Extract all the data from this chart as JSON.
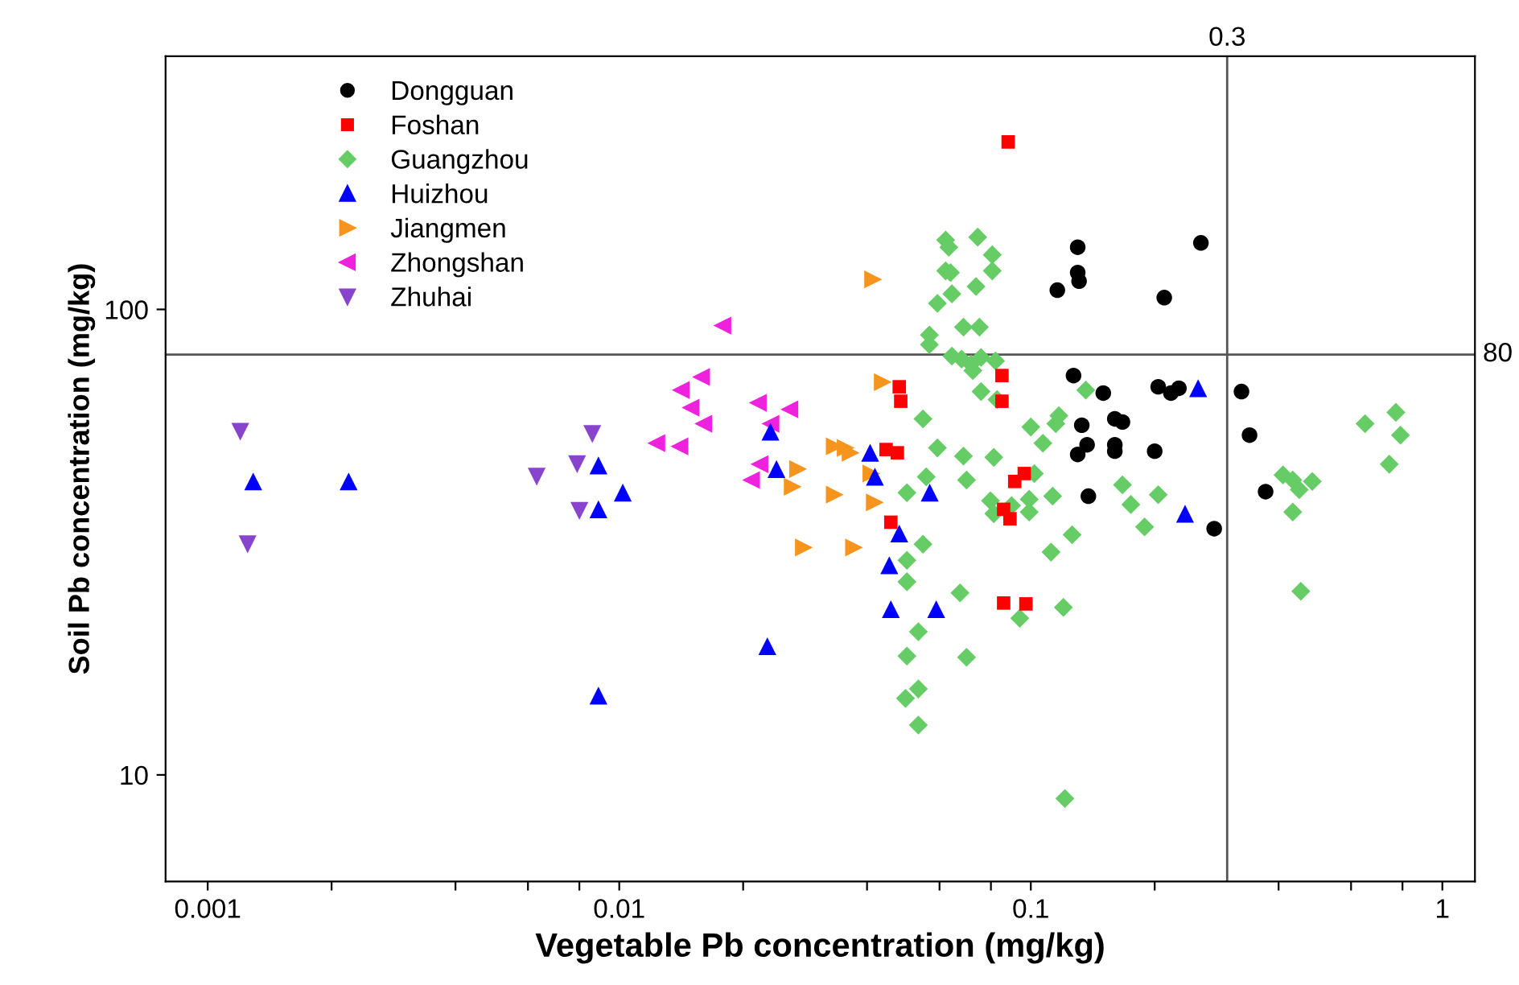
{
  "chart_data": {
    "type": "scatter",
    "xlabel": "Vegetable Pb concentration (mg/kg)",
    "ylabel": "Soil Pb concentration (mg/kg)",
    "log": "xy",
    "xlim": [
      0.00079,
      1.2
    ],
    "ylim": [
      5.9,
      350
    ],
    "xticks": [
      0.001,
      {
        "value": 0.002,
        "label": null
      },
      {
        "value": 0.004,
        "label": null
      },
      {
        "value": 0.006,
        "label": null
      },
      {
        "value": 0.008,
        "label": null
      },
      0.01,
      {
        "value": 0.02,
        "label": null
      },
      {
        "value": 0.04,
        "label": null
      },
      {
        "value": 0.06,
        "label": null
      },
      {
        "value": 0.08,
        "label": null
      },
      0.1,
      {
        "value": 0.2,
        "label": null
      },
      {
        "value": 0.4,
        "label": null
      },
      {
        "value": 0.6,
        "label": null
      },
      {
        "value": 0.8,
        "label": null
      },
      1
    ],
    "yticks": [
      10,
      100
    ],
    "grid": false,
    "legend": "top left",
    "ref_lines": [
      {
        "axis": "x",
        "value": 0.3,
        "label": "0.3",
        "color": "#555555"
      },
      {
        "axis": "y",
        "value": 80,
        "label": "80",
        "color": "#555555"
      }
    ],
    "series": [
      {
        "name": "Dongguan",
        "color": "#000000",
        "marker": "circle",
        "x": [
          0.13,
          0.13,
          0.131,
          0.116,
          0.259,
          0.211,
          0.127,
          0.15,
          0.204,
          0.219,
          0.229,
          0.325,
          0.133,
          0.16,
          0.167,
          0.137,
          0.13,
          0.16,
          0.16,
          0.2,
          0.34,
          0.138,
          0.372,
          0.279
        ],
        "values": [
          136,
          120,
          115,
          110,
          139,
          106,
          72.1,
          66.1,
          68.2,
          66.1,
          67.7,
          66.6,
          56.4,
          58.2,
          57.3,
          51.2,
          48.8,
          51.2,
          49.6,
          49.6,
          53.7,
          39.7,
          40.6,
          33.8
        ]
      },
      {
        "name": "Foshan",
        "color": "#ff0000",
        "marker": "square",
        "x": [
          0.0881,
          0.0851,
          0.0479,
          0.0483,
          0.0851,
          0.0445,
          0.0474,
          0.0914,
          0.0964,
          0.089,
          0.0859,
          0.0457,
          0.0859,
          0.0973
        ],
        "values": [
          229,
          72.1,
          68.2,
          63.5,
          63.5,
          50.0,
          49.2,
          42.7,
          44.4,
          35.5,
          37.2,
          34.9,
          23.4,
          23.3
        ]
      },
      {
        "name": "Guangzhou",
        "color": "#66cc66",
        "marker": "diamond",
        "x": [
          0.0621,
          0.0632,
          0.0743,
          0.0806,
          0.0621,
          0.0638,
          0.0806,
          0.0643,
          0.0736,
          0.0593,
          0.0686,
          0.075,
          0.0567,
          0.0567,
          0.0643,
          0.0679,
          0.0716,
          0.0757,
          0.0723,
          0.0821,
          0.136,
          0.0757,
          0.0828,
          0.0547,
          0.117,
          0.115,
          0.1,
          0.107,
          0.0593,
          0.0686,
          0.0813,
          0.0557,
          0.0698,
          0.102,
          0.05,
          0.0798,
          0.0991,
          0.113,
          0.0898,
          0.0813,
          0.0991,
          0.126,
          0.0547,
          0.05,
          0.05,
          0.0673,
          0.0533,
          0.05,
          0.0698,
          0.0496,
          0.0533,
          0.0533,
          0.094,
          0.112,
          0.12,
          0.121,
          0.167,
          0.175,
          0.204,
          0.189,
          0.649,
          0.771,
          0.791,
          0.743,
          0.41,
          0.433,
          0.483,
          0.449,
          0.433,
          0.453
        ],
        "values": [
          141,
          136,
          143,
          131,
          121,
          120,
          121,
          108,
          112,
          103,
          91.6,
          91.6,
          88.1,
          84.0,
          79.4,
          78.2,
          76.3,
          78.8,
          73.9,
          77.5,
          67.1,
          66.6,
          64.0,
          58.2,
          59.1,
          56.8,
          55.9,
          51.6,
          50.4,
          48.4,
          48.1,
          43.7,
          43.0,
          44.4,
          40.4,
          38.8,
          39.1,
          39.7,
          37.9,
          36.4,
          36.7,
          32.8,
          31.3,
          28.9,
          26.0,
          24.6,
          20.3,
          18.0,
          17.9,
          14.6,
          15.3,
          12.8,
          21.7,
          30.1,
          22.9,
          8.9,
          42.0,
          38.1,
          40.0,
          34.1,
          56.8,
          60.1,
          53.7,
          46.5,
          44.1,
          43.0,
          42.7,
          41.0,
          36.7,
          24.8
        ]
      },
      {
        "name": "Huizhou",
        "color": "#0000ff",
        "marker": "triangle",
        "x": [
          0.00129,
          0.0022,
          0.0089,
          0.0102,
          0.0089,
          0.0089,
          0.0233,
          0.0241,
          0.0407,
          0.0418,
          0.0568,
          0.0479,
          0.0453,
          0.0457,
          0.0589,
          0.0229,
          0.255,
          0.237
        ],
        "values": [
          42.7,
          42.7,
          46.2,
          40.4,
          37.2,
          14.8,
          54.6,
          45.4,
          49.2,
          43.7,
          40.4,
          33.0,
          28.2,
          22.7,
          22.7,
          18.9,
          67.7,
          36.4
        ]
      },
      {
        "name": "Jiangmen",
        "color": "#f7941d",
        "marker": "triangle-right",
        "x": [
          0.0414,
          0.0437,
          0.0334,
          0.0355,
          0.0365,
          0.0272,
          0.0264,
          0.041,
          0.0334,
          0.0418,
          0.0281,
          0.0372
        ],
        "values": [
          116,
          69.8,
          50.8,
          50.4,
          49.2,
          45.4,
          41.6,
          44.4,
          40.0,
          38.5,
          30.8,
          30.8
        ]
      },
      {
        "name": "Zhongshan",
        "color": "#ee22dd",
        "marker": "triangle-left",
        "x": [
          0.0178,
          0.0158,
          0.0141,
          0.0149,
          0.016,
          0.0123,
          0.014,
          0.0217,
          0.0259,
          0.0233,
          0.0219,
          0.0209
        ],
        "values": [
          92.3,
          71.6,
          67.1,
          61.5,
          56.8,
          51.6,
          50.8,
          63.0,
          61.0,
          56.8,
          46.5,
          43.0
        ]
      },
      {
        "name": "Zhuhai",
        "color": "#8844cc",
        "marker": "triangle-down",
        "x": [
          0.0012,
          0.0086,
          0.0079,
          0.0063,
          0.008,
          0.00125
        ],
        "values": [
          54.6,
          54.0,
          46.5,
          43.7,
          36.9,
          31.3
        ]
      }
    ]
  }
}
